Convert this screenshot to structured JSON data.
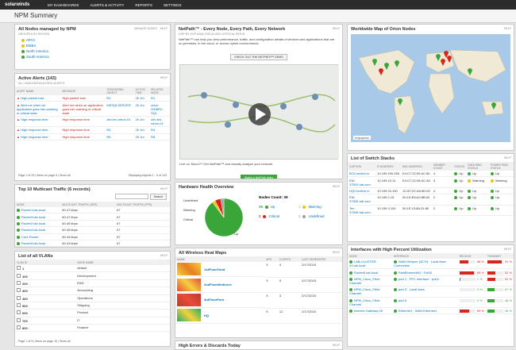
{
  "logo": "solarwinds",
  "nav": [
    "MY DASHBOARDS",
    "ALERTS & ACTIVITY",
    "REPORTS",
    "SETTINGS"
  ],
  "header": {
    "title": "NPM Summary"
  },
  "nodes": {
    "title": "All Nodes managed by NPM",
    "links": [
      "MANAGE NODES",
      "HELP"
    ],
    "subtitle": "GROUPED BY REGION",
    "groups": [
      "APAC",
      "EMEA",
      "North America",
      "South America"
    ]
  },
  "alerts": {
    "title": "Active Alerts (143)",
    "links": [
      "HELP"
    ],
    "subtitle": "ALL UNACKNOWLEDGED ALERTS",
    "columns": [
      "ALERT NAME",
      "MESSAGE",
      "TRIGGERING OBJECT",
      "ACTIVE TIME",
      "RELATED NODE"
    ],
    "rows": [
      [
        "High packet loss",
        "High packet loss",
        "R1",
        "2h 1m",
        "R1"
      ],
      [
        "Alert me when an application goes into warning or critical state",
        "Alert me when an application goes into warning or critical state",
        "MSSQLSERVER",
        "2h 1m",
        "orion-2008R2-SQL"
      ],
      [
        "High response time",
        "High response time",
        "dev-tex-mbun-01",
        "2h 1m",
        "dev-tex-mbun-01"
      ],
      [
        "High response time",
        "High response time",
        "R4",
        "2h 1m",
        "R4"
      ],
      [
        "High response time",
        "High response time",
        "R8",
        "2h 1m",
        "R8"
      ]
    ],
    "pager": "Page 1 of 29 | Items on page 5 | Show all",
    "displaying": "Displaying objects 1 - 5 of 143"
  },
  "multicast": {
    "title": "Top 10 Multicast Traffic (6 records)",
    "links": [
      "HELP"
    ],
    "search": "Search",
    "columns": [
      "NODE",
      "MULTICAST TRAFFIC (BPS)",
      "MULTICAST TRAFFIC (PPS)"
    ],
    "rows": [
      [
        "Router1.lab.local",
        "60.47 kbps",
        "67"
      ],
      [
        "Router3.lab.local",
        "60.47 kbps",
        "67"
      ],
      [
        "Router2.lab.local",
        "60.45 kbps",
        "67"
      ],
      [
        "Router4.lab.local",
        "60.45 kbps",
        "67"
      ],
      [
        "Core Router",
        "60.44 kbps",
        "67"
      ],
      [
        "Router5.lab.local",
        "60.43 kbps",
        "67"
      ]
    ]
  },
  "vlans": {
    "title": "List of all VLANs",
    "links": [
      "HELP"
    ],
    "columns": [
      "VLAN ID",
      "NODE NAME"
    ],
    "rows": [
      [
        "1",
        "default"
      ],
      [
        "100",
        "Development"
      ],
      [
        "200",
        "R&D"
      ],
      [
        "300",
        "Accounting"
      ],
      [
        "400",
        "Operations"
      ],
      [
        "500",
        "Shipping"
      ],
      [
        "600",
        "Product"
      ],
      [
        "700",
        "IT"
      ],
      [
        "800",
        "Finance"
      ]
    ],
    "pager": "Page 1 of 5 | Items on page 10 | Show all"
  },
  "netpath": {
    "title": "NetPath™ - Every Node, Every Path, Every Network",
    "links": [
      "HELP"
    ],
    "subtitle": "HOP BY HOP ANALYSIS ALONG CRITICAL PATHS",
    "description": "NetPath™ can help you view performance, traffic, and configuration details of devices and applications that are on-premises, in the cloud, or across hybrid environments.",
    "demo": "CHECK OUT THE NETPATH™ DEMO",
    "caption": "Live vs. Moon?? Get NetPath™ and visually analyze your network.",
    "video": "Watch a NetPath video"
  },
  "health": {
    "title": "Hardware Health Overview",
    "links": [
      "HELP"
    ],
    "count": "Nodes Count: 39",
    "segments": [
      {
        "name": "Up",
        "color": "#3aa63a",
        "value": 35
      },
      {
        "name": "Warning",
        "color": "#f2c500",
        "value": 1
      },
      {
        "name": "Critical",
        "color": "#d9261c",
        "value": 2
      },
      {
        "name": "Undefined",
        "color": "#9e9e9e",
        "value": 1
      }
    ]
  },
  "wireless": {
    "title": "All Wireless Heat Maps",
    "links": [
      "HELP"
    ],
    "columns": [
      "NAME",
      "APS",
      "CLIENTS",
      "LAST GENERATED"
    ],
    "rows": [
      [
        "1stFloorGood",
        "3",
        "4",
        "2/17/2015"
      ],
      [
        "2ndFloorMediocre",
        "3",
        "5",
        "2/17/2015"
      ],
      [
        "3rdFloorPoor",
        "3",
        "3",
        "2/17/2015"
      ],
      [
        "HQ",
        "5",
        "12",
        "2/17/2015"
      ]
    ]
  },
  "errors": {
    "title": "High Errors & Discards Today",
    "links": [
      "HELP"
    ]
  },
  "map": {
    "title": "Worldwide Map of Orion Nodes",
    "links": [
      "HELP"
    ],
    "brand": "mapquest"
  },
  "stacks": {
    "title": "List of Switch Stacks",
    "links": [
      "HELP"
    ],
    "columns": [
      "CAPTION",
      "IP ADDRESS",
      "MAC ADDRESS",
      "MEMBER COUNT",
      "STATUS",
      "DATA RING STATUS",
      "POWER RING STATUS"
    ],
    "rows": [
      [
        "BOCore6vh.m",
        "10.199.200.250",
        "E4:C7:22:09:AC:80",
        "4",
        "Up",
        "Up",
        "Up"
      ],
      [
        "EW-3750X.lab.com",
        "10.199.10.11",
        "E4:C7:22:09:AC:A0",
        "3",
        "Up",
        "Warning",
        "Warning"
      ],
      [
        "HQCore6vh.m",
        "10.199.20.100",
        "1C:87:2C:0A:5D:00",
        "4",
        "Up",
        "Up",
        "Up"
      ],
      [
        "EW-3750E.lab.com",
        "10.199.2.15",
        "00:1D:E6:A2:8B:00",
        "2",
        "Up",
        "Up",
        "Up"
      ],
      [
        "Tex-3750E.lab.com",
        "10.199.3.100",
        "00:1E:13:8A:31:80",
        "2",
        "Up",
        "Up",
        "Up"
      ]
    ]
  },
  "interfaces": {
    "title": "Interfaces with High Percent Utilization",
    "links": [
      "HELP"
    ],
    "columns": [
      "NODE",
      "INTERFACE",
      "RECEIVE",
      "TRANSMIT"
    ],
    "rows": [
      {
        "node": "LAB-CLUSTER-01.lab.local",
        "interface": "WAN Miniport (3279) · Local Area Connection",
        "receive": 58,
        "receive_label": "58 %",
        "transmit": 91,
        "transmit_label": "91 %"
      },
      {
        "node": "Router5.lab.local",
        "interface": "FastEthernet0/0 · Fa0/0",
        "receive": 89,
        "receive_label": "89 %",
        "transmit": 52,
        "transmit_label": "52 %"
      },
      {
        "node": "NPM_Cisco_Fibre Channel",
        "interface": "port 1 · FPC Interface · port1",
        "receive": 1,
        "receive_label": "1 %",
        "transmit": 51,
        "transmit_label": "51 %"
      },
      {
        "node": "NPM_Cisco_Fibre Channel",
        "interface": "port 3 · Local Area",
        "receive": 0,
        "receive_label": "0 %",
        "transmit": 47,
        "transmit_label": "47 %"
      },
      {
        "node": "NPM_Cisco_Fibre Channel",
        "interface": "port 5",
        "receive": 0,
        "receive_label": "0 %",
        "transmit": 46,
        "transmit_label": "46 %"
      },
      {
        "node": "Internet Gateway 09",
        "interface": "Ethernet1 · WAN Ethernet1",
        "receive": 59,
        "receive_label": "59 %",
        "transmit": 45,
        "transmit_label": "45 %"
      }
    ]
  }
}
